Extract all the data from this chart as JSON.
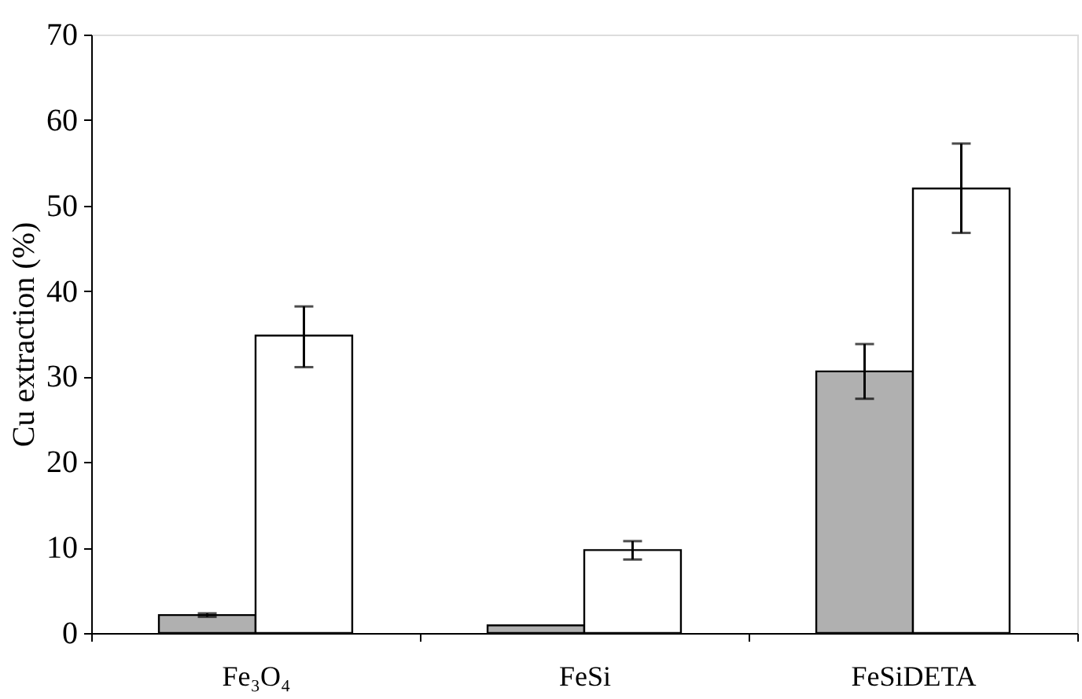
{
  "chart_data": {
    "type": "bar",
    "ylabel": "Cu extraction (%)",
    "categories": [
      "Fe₃O₄",
      "FeSi",
      "FeSiDETA"
    ],
    "series": [
      {
        "color": "#b0b0b0",
        "values": [
          2.1,
          0.9,
          30.6
        ],
        "errors": [
          [
            1.9,
            2.3
          ],
          null,
          [
            27.4,
            33.8
          ]
        ]
      },
      {
        "color": "#ffffff",
        "values": [
          34.8,
          9.7,
          52.0
        ],
        "errors": [
          [
            31.1,
            38.2
          ],
          [
            8.6,
            10.75
          ],
          [
            46.8,
            57.25
          ]
        ]
      }
    ],
    "ylim": [
      0,
      70
    ],
    "yticks": [
      0,
      10,
      20,
      30,
      40,
      50,
      60,
      70
    ],
    "grid": false,
    "legend": false
  }
}
